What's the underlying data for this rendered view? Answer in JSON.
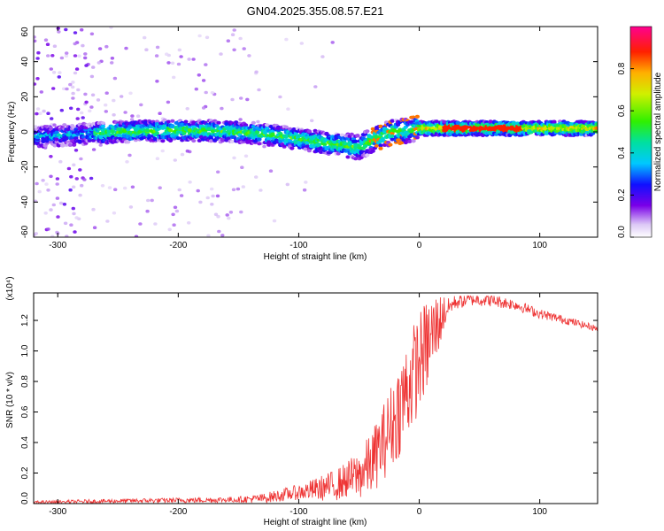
{
  "title": "GN04.2025.355.08.57.E21",
  "chart_data": [
    {
      "type": "heatmap",
      "name": "spectrogram",
      "xlabel": "Height of straight line (km)",
      "ylabel": "Frequency (Hz)",
      "xlim": [
        -320,
        148
      ],
      "ylim": [
        -60,
        60
      ],
      "xticks": [
        -300,
        -200,
        -100,
        0,
        100
      ],
      "yticks": [
        -60,
        -40,
        -20,
        0,
        20,
        40,
        60
      ],
      "centerline": [
        [
          -320,
          -3
        ],
        [
          -250,
          0
        ],
        [
          -200,
          1
        ],
        [
          -150,
          0
        ],
        [
          -120,
          -2
        ],
        [
          -100,
          -4
        ],
        [
          -80,
          -6
        ],
        [
          -60,
          -8
        ],
        [
          -50,
          -9
        ],
        [
          -40,
          -5
        ],
        [
          -30,
          -2
        ],
        [
          -20,
          0
        ],
        [
          -10,
          1
        ],
        [
          0,
          2
        ],
        [
          50,
          2
        ],
        [
          100,
          2
        ],
        [
          148,
          2
        ]
      ],
      "colorbar": {
        "label": "Normalized spectral amplitude",
        "range": [
          0,
          1
        ],
        "ticks": [
          0.0,
          0.2,
          0.4,
          0.6,
          0.8
        ]
      }
    },
    {
      "type": "line",
      "name": "snr",
      "xlabel": "Height of straight line (km)",
      "ylabel": "SNR (10 * v/v)",
      "scale_label": "(x10⁴)",
      "xlim": [
        -320,
        148
      ],
      "ylim": [
        0,
        1.38
      ],
      "xticks": [
        -300,
        -200,
        -100,
        0,
        100
      ],
      "yticks": [
        0.0,
        0.2,
        0.4,
        0.6,
        0.8,
        1.0,
        1.2
      ],
      "color": "#ee3333",
      "envelope": [
        [
          -320,
          0.01
        ],
        [
          -250,
          0.02
        ],
        [
          -200,
          0.025
        ],
        [
          -150,
          0.03
        ],
        [
          -130,
          0.04
        ],
        [
          -110,
          0.07
        ],
        [
          -90,
          0.1
        ],
        [
          -70,
          0.14
        ],
        [
          -50,
          0.22
        ],
        [
          -40,
          0.3
        ],
        [
          -30,
          0.45
        ],
        [
          -20,
          0.62
        ],
        [
          -10,
          0.82
        ],
        [
          0,
          1.0
        ],
        [
          10,
          1.15
        ],
        [
          20,
          1.27
        ],
        [
          30,
          1.33
        ],
        [
          45,
          1.35
        ],
        [
          60,
          1.34
        ],
        [
          80,
          1.31
        ],
        [
          100,
          1.25
        ],
        [
          120,
          1.21
        ],
        [
          148,
          1.15
        ]
      ],
      "noise_amplitude": [
        [
          -320,
          0.01
        ],
        [
          -150,
          0.02
        ],
        [
          -100,
          0.05
        ],
        [
          -60,
          0.12
        ],
        [
          -30,
          0.25
        ],
        [
          -10,
          0.35
        ],
        [
          10,
          0.3
        ],
        [
          25,
          0.05
        ],
        [
          148,
          0.02
        ]
      ]
    }
  ]
}
